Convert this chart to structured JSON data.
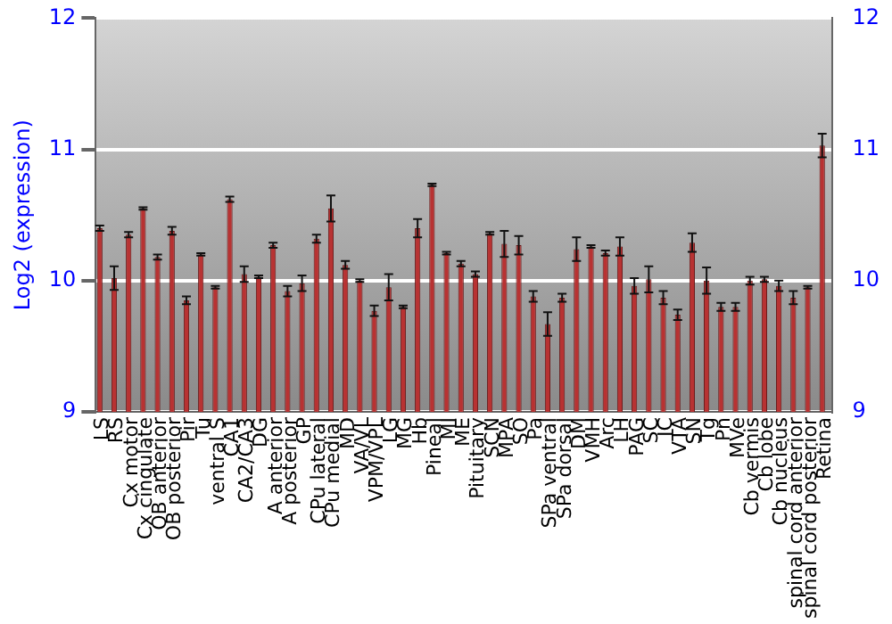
{
  "chart_data": {
    "type": "bar",
    "ylabel": "Log2 (expression)",
    "categories": [
      "LS",
      "RS",
      "Cx motor",
      "Cx cingulate",
      "OB anterior",
      "OB posterior",
      "Pir",
      "Tu",
      "ventral S",
      "CA1",
      "CA2/CA3",
      "DG",
      "A anterior",
      "A posterior",
      "GP",
      "CPu lateral",
      "CPu medial",
      "MD",
      "VA/VL",
      "VPM/VPL",
      "LG",
      "MG",
      "Hb",
      "Pineal",
      "MI",
      "ME",
      "Pituitary",
      "SCN",
      "MPA",
      "SO",
      "Pa",
      "SPa ventral",
      "SPa dorsal",
      "DM",
      "VMH",
      "Arc",
      "LH",
      "PAG",
      "SC",
      "IC",
      "VTA",
      "SN",
      "Tg",
      "Pn",
      "MVe",
      "Cb vermis",
      "Cb lobe",
      "Cb nucleus",
      "spinal cord anterior",
      "spinal cord posterior",
      "Retina"
    ],
    "values": [
      10.4,
      10.02,
      10.35,
      10.55,
      10.18,
      10.38,
      9.85,
      10.2,
      9.95,
      10.62,
      10.05,
      10.03,
      10.27,
      9.92,
      9.98,
      10.32,
      10.55,
      10.12,
      10.0,
      9.77,
      9.95,
      9.8,
      10.4,
      10.73,
      10.21,
      10.13,
      10.05,
      10.36,
      10.28,
      10.27,
      9.88,
      9.67,
      9.87,
      10.24,
      10.26,
      10.21,
      10.26,
      9.96,
      10.01,
      9.87,
      9.74,
      10.29,
      10.0,
      9.8,
      9.8,
      10.0,
      10.01,
      9.96,
      9.87,
      9.95,
      11.03
    ],
    "errors": [
      0.02,
      0.09,
      0.02,
      0.01,
      0.02,
      0.03,
      0.03,
      0.01,
      0.01,
      0.02,
      0.06,
      0.01,
      0.02,
      0.04,
      0.06,
      0.03,
      0.1,
      0.03,
      0.01,
      0.04,
      0.1,
      0.01,
      0.07,
      0.01,
      0.01,
      0.02,
      0.02,
      0.01,
      0.1,
      0.07,
      0.04,
      0.09,
      0.03,
      0.09,
      0.01,
      0.02,
      0.07,
      0.06,
      0.1,
      0.05,
      0.04,
      0.07,
      0.1,
      0.03,
      0.03,
      0.03,
      0.02,
      0.04,
      0.05,
      0.01,
      0.09
    ],
    "color": "#b83232",
    "ylim": [
      9,
      12
    ],
    "yticks": [
      9,
      10,
      11,
      12
    ],
    "y2lim": [
      9,
      12
    ],
    "y2ticks": [
      9,
      10,
      11,
      12
    ],
    "grid": "y",
    "legend": false
  }
}
